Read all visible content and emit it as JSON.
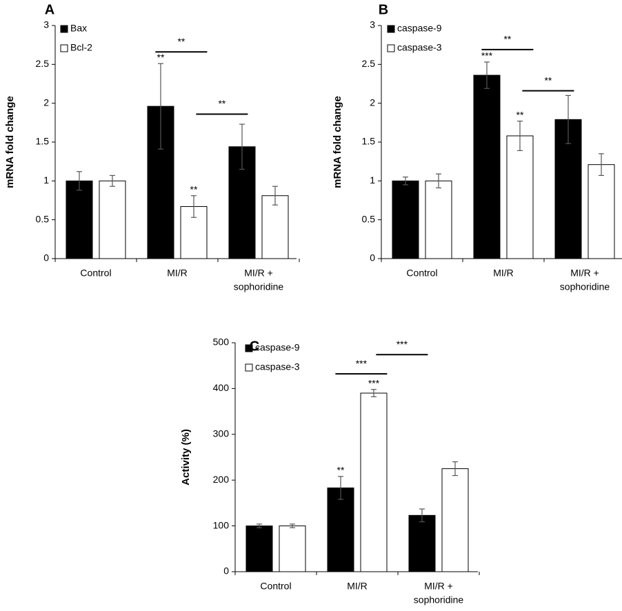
{
  "chart_data": [
    {
      "type": "bar",
      "panel_label": "A",
      "ylabel": "mRNA fold change",
      "ylim": [
        0,
        3
      ],
      "yticks": [
        0,
        0.5,
        1,
        1.5,
        2,
        2.5,
        3
      ],
      "ytick_labels": [
        "0",
        "0.5",
        "1",
        "1.5",
        "2",
        "2.5",
        "3"
      ],
      "categories": [
        "Control",
        "MI/R",
        "MI/R + sophoridine"
      ],
      "category_lines": [
        [
          "Control"
        ],
        [
          "MI/R"
        ],
        [
          "MI/R +",
          "sophoridine"
        ]
      ],
      "legend_position": "top-left",
      "grid": false,
      "series": [
        {
          "name": "Bax",
          "color": "#000000",
          "values": [
            1.0,
            1.96,
            1.44
          ],
          "errors": [
            0.12,
            0.55,
            0.29
          ],
          "stars": [
            "",
            "**",
            ""
          ]
        },
        {
          "name": "Bcl-2",
          "color": "#ffffff",
          "values": [
            1.0,
            0.67,
            0.81
          ],
          "errors": [
            0.07,
            0.14,
            0.12
          ],
          "stars": [
            "",
            "**",
            ""
          ]
        }
      ],
      "comparisons": [
        {
          "from_category": 1,
          "to_category": 1.5,
          "y": 2.66,
          "label": "**"
        },
        {
          "from_category": 1.5,
          "to_category": 2,
          "y": 1.86,
          "label": "**"
        }
      ]
    },
    {
      "type": "bar",
      "panel_label": "B",
      "ylabel": "mRNA fold change",
      "ylim": [
        0,
        3
      ],
      "yticks": [
        0,
        0.5,
        1,
        1.5,
        2,
        2.5,
        3
      ],
      "ytick_labels": [
        "0",
        "0.5",
        "1",
        "1.5",
        "2",
        "2.5",
        "3"
      ],
      "categories": [
        "Control",
        "MI/R",
        "MI/R + sophoridine"
      ],
      "category_lines": [
        [
          "Control"
        ],
        [
          "MI/R"
        ],
        [
          "MI/R +",
          "sophoridine"
        ]
      ],
      "legend_position": "top-left",
      "grid": false,
      "series": [
        {
          "name": "caspase-9",
          "color": "#000000",
          "values": [
            1.0,
            2.36,
            1.79
          ],
          "errors": [
            0.05,
            0.17,
            0.31
          ],
          "stars": [
            "",
            "***",
            ""
          ]
        },
        {
          "name": "caspase-3",
          "color": "#ffffff",
          "values": [
            1.0,
            1.58,
            1.21
          ],
          "errors": [
            0.09,
            0.19,
            0.14
          ],
          "stars": [
            "",
            "**",
            ""
          ]
        }
      ],
      "comparisons": [
        {
          "from_category": 1,
          "to_category": 1.5,
          "y": 2.69,
          "label": "**"
        },
        {
          "from_category": 1.5,
          "to_category": 2,
          "y": 2.16,
          "label": "**"
        }
      ]
    },
    {
      "type": "bar",
      "panel_label": "C",
      "ylabel": "Activity (%)",
      "ylim": [
        0,
        500
      ],
      "yticks": [
        0,
        100,
        200,
        300,
        400,
        500
      ],
      "ytick_labels": [
        "0",
        "100",
        "200",
        "300",
        "400",
        "500"
      ],
      "categories": [
        "Control",
        "MI/R",
        "MI/R + sophoridine"
      ],
      "category_lines": [
        [
          "Control"
        ],
        [
          "MI/R"
        ],
        [
          "MI/R +",
          "sophoridine"
        ]
      ],
      "legend_position": "top-left",
      "grid": false,
      "series": [
        {
          "name": "caspase-9",
          "color": "#000000",
          "values": [
            100,
            183,
            123
          ],
          "errors": [
            4,
            25,
            14
          ],
          "stars": [
            "",
            "**",
            ""
          ]
        },
        {
          "name": "caspase-3",
          "color": "#ffffff",
          "values": [
            100,
            390,
            225
          ],
          "errors": [
            4,
            8,
            15
          ],
          "stars": [
            "",
            "***",
            ""
          ]
        }
      ],
      "comparisons": [
        {
          "from_category": 1,
          "to_category": 1.5,
          "y": 432,
          "label": "***"
        },
        {
          "from_category": 1.5,
          "to_category": 2,
          "y": 474,
          "label": "***"
        }
      ]
    }
  ]
}
